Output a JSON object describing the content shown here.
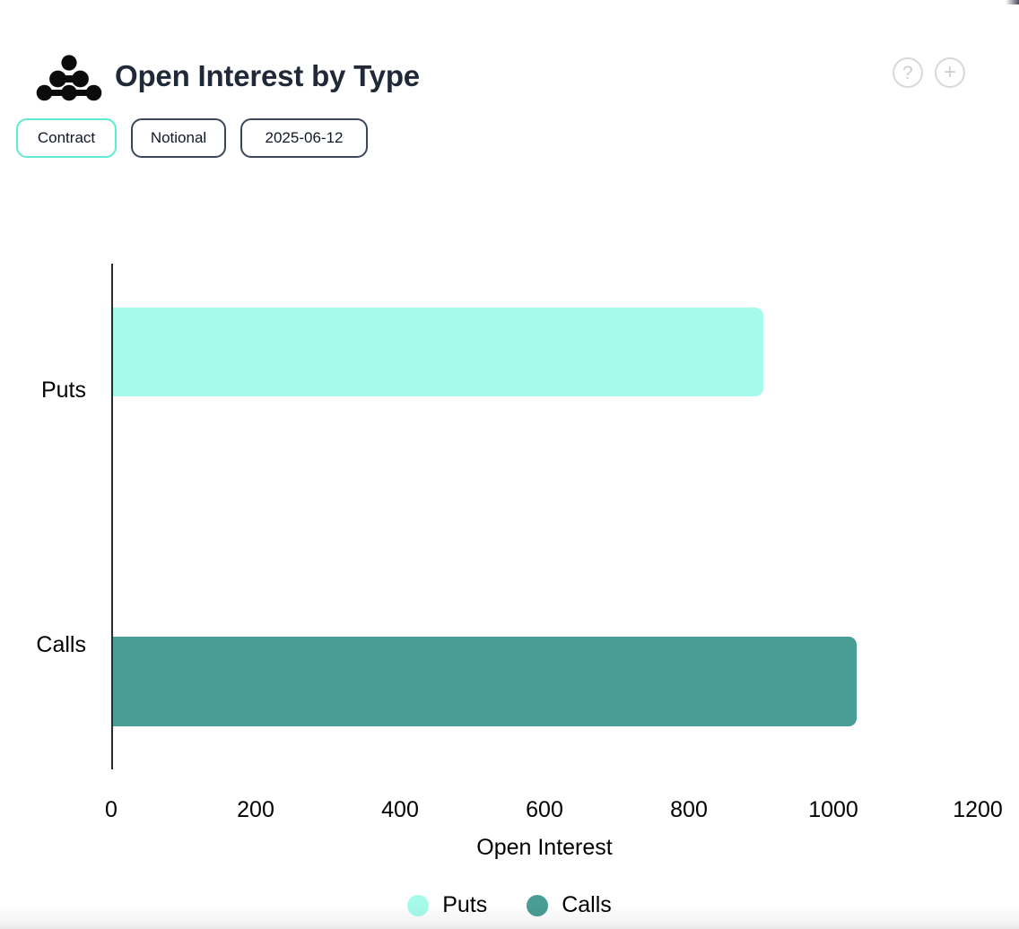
{
  "header": {
    "title": "Open Interest by Type",
    "help_glyph": "?",
    "plus_glyph": "+"
  },
  "toolbar": {
    "buttons": [
      {
        "label": "Contract",
        "active": true
      },
      {
        "label": "Notional",
        "active": false
      },
      {
        "label": "2025-06-12",
        "active": false
      }
    ]
  },
  "chart_data": {
    "type": "bar",
    "orientation": "horizontal",
    "title": "Open Interest by Type",
    "xlabel": "Open Interest",
    "ylabel": "",
    "categories": [
      "Puts",
      "Calls"
    ],
    "series": [
      {
        "name": "Puts",
        "category": "Puts",
        "value": 900,
        "color": "#a6fae9"
      },
      {
        "name": "Calls",
        "category": "Calls",
        "value": 1030,
        "color": "#499d95"
      }
    ],
    "xlim": [
      0,
      1200
    ],
    "xticks": [
      0,
      200,
      400,
      600,
      800,
      1000,
      1200
    ],
    "grid": false,
    "legend": {
      "position": "bottom",
      "items": [
        {
          "label": "Puts",
          "color": "#a6fae9"
        },
        {
          "label": "Calls",
          "color": "#499d95"
        }
      ]
    }
  },
  "colors": {
    "accent_active": "#5eead4",
    "button_border": "#3b4759",
    "title_text": "#1f2937",
    "axis_line": "#2b2b2b",
    "icon_gray": "#d8d8d8",
    "puts_bar": "#a6fae9",
    "calls_bar": "#499d95"
  }
}
